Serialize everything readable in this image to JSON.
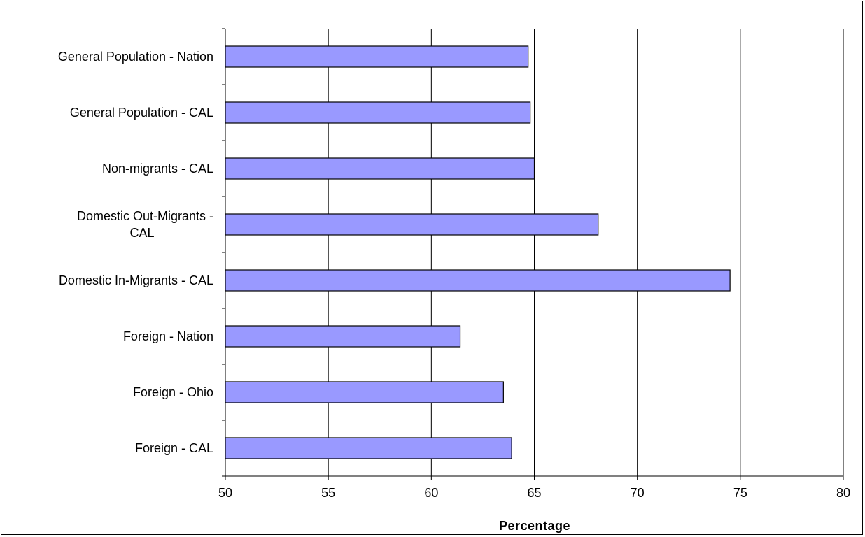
{
  "chart_data": {
    "type": "bar",
    "orientation": "horizontal",
    "categories": [
      "General Population - Nation",
      "General Population - CAL",
      "Non-migrants - CAL",
      "Domestic Out-Migrants - CAL",
      "Domestic In-Migrants - CAL",
      "Foreign - Nation",
      "Foreign - Ohio",
      "Foreign - CAL"
    ],
    "category_lines": [
      [
        "General Population - Nation"
      ],
      [
        "General Population - CAL"
      ],
      [
        "Non-migrants - CAL"
      ],
      [
        "Domestic Out-Migrants -",
        "CAL"
      ],
      [
        "Domestic In-Migrants - CAL"
      ],
      [
        "Foreign - Nation"
      ],
      [
        "Foreign - Ohio"
      ],
      [
        "Foreign - CAL"
      ]
    ],
    "values": [
      64.7,
      64.8,
      65.0,
      68.1,
      74.5,
      61.4,
      63.5,
      63.9
    ],
    "xlabel": "Percentage",
    "xlim": [
      50,
      80
    ],
    "xticks": [
      "50",
      "55",
      "60",
      "65",
      "70",
      "75",
      "80"
    ],
    "grid": "vertical",
    "colors": {
      "bar_fill": "#9999ff",
      "bar_stroke": "#000000",
      "grid": "#000000"
    }
  }
}
